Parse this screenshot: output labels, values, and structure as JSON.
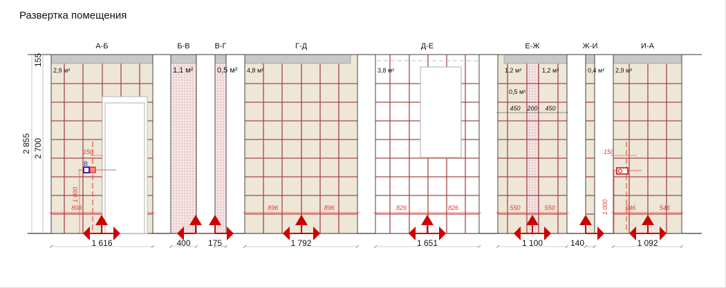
{
  "title": "Развертка помещения",
  "colors": {
    "tile": "#eee6d6",
    "grid": "#a04848",
    "ceiling": "#c8c8c8",
    "accent": "#cc0000",
    "dim": "#ee3333",
    "socket_blue": "#3322bb"
  },
  "height_dims": {
    "total": "2 855",
    "tiled": "2 700",
    "top": "155"
  },
  "panels": [
    {
      "label": "А-Б",
      "area": "2,9 м²",
      "width": "1 616",
      "half_left": "808",
      "half_right": "808",
      "fill": "tile"
    },
    {
      "label": "Б-В",
      "area": "1,1 м²",
      "width": "400",
      "fill": "mosaic"
    },
    {
      "label": "В-Г",
      "area": "0,5 м²",
      "width": "175",
      "fill": "mosaic"
    },
    {
      "label": "Г-Д",
      "area": "4,8 м²",
      "width": "1 792",
      "half_left": "896",
      "half_right": "896",
      "fill": "tile"
    },
    {
      "label": "Д-Е",
      "area": "3,8 м²",
      "width": "1 651",
      "half_left": "826",
      "half_right": "826",
      "fill": "white"
    },
    {
      "label": "Е-Ж",
      "area_left": "1,2 м²",
      "area_right": "1,2 м²",
      "area_center": "0,5 м²",
      "width": "1 100",
      "half_left": "550",
      "half_right": "550",
      "split": [
        "450",
        "200",
        "450"
      ],
      "fill": "tile"
    },
    {
      "label": "Ж-И",
      "area": "0,4 м²",
      "width": "140",
      "fill": "tile"
    },
    {
      "label": "И-А",
      "area": "2,9 м²",
      "width": "1 092",
      "half_left": "546",
      "half_right": "546",
      "fill": "tile"
    }
  ],
  "sockets": [
    {
      "wall": "А-Б",
      "label": "В",
      "offset": "150",
      "height": "1 000"
    },
    {
      "wall": "И-А",
      "offset": "150",
      "height": "1 000"
    }
  ]
}
